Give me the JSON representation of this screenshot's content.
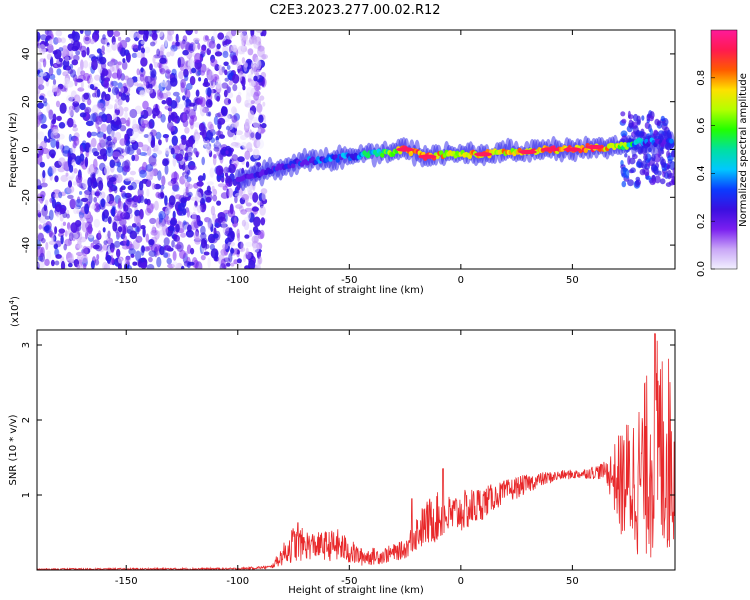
{
  "title": "C2E3.2023.277.00.02.R12",
  "chart_data": [
    {
      "type": "heatmap",
      "name": "spectrogram",
      "xlabel": "Height of straight line (km)",
      "ylabel": "Frequency (Hz)",
      "xlim": [
        -190,
        96
      ],
      "ylim": [
        -50,
        50
      ],
      "xticks": [
        -150,
        -100,
        -50,
        0,
        50
      ],
      "yticks": [
        -40,
        -20,
        0,
        20,
        40
      ],
      "colorbar": {
        "label": "Normalized spectral amplitude",
        "range": [
          0,
          1
        ],
        "ticks": [
          "0.0",
          "0.2",
          "0.4",
          "0.6",
          "0.8"
        ],
        "colormap": [
          "#f2f0ff",
          "#c9a6f7",
          "#7a1ff0",
          "#3a0fe0",
          "#0a3cff",
          "#00c8ff",
          "#00e0a0",
          "#22ff00",
          "#b4ff00",
          "#ffe000",
          "#ff5a00",
          "#ff1a50",
          "#ff1a9a"
        ]
      },
      "ridge": [
        {
          "x": -100,
          "f": -12,
          "a": 0.25
        },
        {
          "x": -90,
          "f": -10,
          "a": 0.3
        },
        {
          "x": -80,
          "f": -7,
          "a": 0.35
        },
        {
          "x": -70,
          "f": -5,
          "a": 0.4
        },
        {
          "x": -60,
          "f": -4,
          "a": 0.45
        },
        {
          "x": -50,
          "f": -3,
          "a": 0.45
        },
        {
          "x": -40,
          "f": -2,
          "a": 0.6
        },
        {
          "x": -30,
          "f": -1,
          "a": 0.7
        },
        {
          "x": -25,
          "f": 0,
          "a": 0.95
        },
        {
          "x": -15,
          "f": -3,
          "a": 0.9
        },
        {
          "x": -8,
          "f": -2,
          "a": 0.85
        },
        {
          "x": 0,
          "f": -2,
          "a": 0.8
        },
        {
          "x": 10,
          "f": -2,
          "a": 0.9
        },
        {
          "x": 20,
          "f": -1,
          "a": 0.85
        },
        {
          "x": 30,
          "f": -1,
          "a": 0.9
        },
        {
          "x": 40,
          "f": 0,
          "a": 0.95
        },
        {
          "x": 50,
          "f": 0,
          "a": 0.9
        },
        {
          "x": 60,
          "f": 1,
          "a": 0.95
        },
        {
          "x": 70,
          "f": 1,
          "a": 0.8
        },
        {
          "x": 80,
          "f": 3,
          "a": 0.5
        },
        {
          "x": 90,
          "f": 3,
          "a": 0.4
        }
      ]
    },
    {
      "type": "line",
      "name": "snr",
      "xlabel": "Height of straight line (km)",
      "ylabel": "SNR (10 * v/v)",
      "scale_note": "(x10",
      "scale_exp": "4",
      "xlim": [
        -190,
        96
      ],
      "ylim": [
        0,
        3.2
      ],
      "xticks": [
        -150,
        -100,
        -50,
        0,
        50
      ],
      "yticks": [
        1,
        2,
        3
      ],
      "color": "#e8282a",
      "envelope": [
        {
          "x": -190,
          "lo": 0.0,
          "hi": 0.02
        },
        {
          "x": -100,
          "lo": 0.0,
          "hi": 0.03
        },
        {
          "x": -85,
          "lo": 0.02,
          "hi": 0.06
        },
        {
          "x": -75,
          "lo": 0.1,
          "hi": 0.6
        },
        {
          "x": -65,
          "lo": 0.15,
          "hi": 0.5
        },
        {
          "x": -55,
          "lo": 0.1,
          "hi": 0.55
        },
        {
          "x": -45,
          "lo": 0.05,
          "hi": 0.3
        },
        {
          "x": -35,
          "lo": 0.08,
          "hi": 0.3
        },
        {
          "x": -25,
          "lo": 0.15,
          "hi": 0.4
        },
        {
          "x": -20,
          "lo": 0.25,
          "hi": 0.75
        },
        {
          "x": -12,
          "lo": 0.35,
          "hi": 1.05
        },
        {
          "x": -5,
          "lo": 0.45,
          "hi": 1.0
        },
        {
          "x": 5,
          "lo": 0.55,
          "hi": 1.1
        },
        {
          "x": 15,
          "lo": 0.8,
          "hi": 1.15
        },
        {
          "x": 25,
          "lo": 0.95,
          "hi": 1.25
        },
        {
          "x": 35,
          "lo": 1.1,
          "hi": 1.3
        },
        {
          "x": 45,
          "lo": 1.2,
          "hi": 1.33
        },
        {
          "x": 55,
          "lo": 1.22,
          "hi": 1.35
        },
        {
          "x": 65,
          "lo": 1.2,
          "hi": 1.45
        },
        {
          "x": 72,
          "lo": 0.4,
          "hi": 1.9
        },
        {
          "x": 80,
          "lo": 0.15,
          "hi": 2.3
        },
        {
          "x": 88,
          "lo": 0.1,
          "hi": 3.1
        },
        {
          "x": 96,
          "lo": 0.2,
          "hi": 2.8
        }
      ],
      "peaks": [
        {
          "x": -8,
          "y": 1.35
        },
        {
          "x": -22,
          "y": 0.95
        },
        {
          "x": -73,
          "y": 0.63
        },
        {
          "x": 87,
          "y": 3.15
        }
      ]
    }
  ]
}
